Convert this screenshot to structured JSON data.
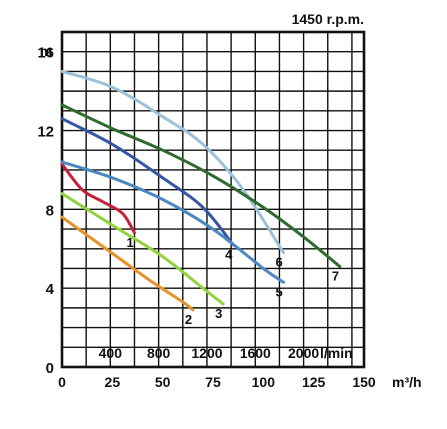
{
  "chart_data": {
    "type": "line",
    "title": "1450 r.p.m.",
    "ylabel": "m",
    "x_units_lpm": "l/min",
    "x_units_m3h": "m³/h",
    "ylim": [
      0,
      17
    ],
    "xlim_m3h": [
      0,
      150
    ],
    "y_ticks": [
      "0",
      "4",
      "8",
      "12",
      "16"
    ],
    "x_ticks_lpm": [
      "400",
      "800",
      "1200",
      "1600",
      "2000"
    ],
    "x_ticks_m3h": [
      "0",
      "25",
      "50",
      "75",
      "100",
      "125",
      "150"
    ],
    "grid": true,
    "series": [
      {
        "name": "1",
        "color": "#c8203a",
        "x": [
          0,
          10,
          20,
          30,
          36
        ],
        "y": [
          10.3,
          9.0,
          8.4,
          7.8,
          6.8
        ]
      },
      {
        "name": "2",
        "color": "#e8922a",
        "x": [
          0,
          15,
          30,
          45,
          60,
          65
        ],
        "y": [
          7.6,
          6.5,
          5.4,
          4.3,
          3.3,
          2.9
        ]
      },
      {
        "name": "3",
        "color": "#8fd43c",
        "x": [
          0,
          25,
          50,
          70,
          80
        ],
        "y": [
          8.8,
          7.2,
          5.6,
          4.0,
          3.2
        ]
      },
      {
        "name": "4",
        "color": "#3355a5",
        "x": [
          0,
          25,
          50,
          70,
          85
        ],
        "y": [
          12.6,
          11.3,
          9.6,
          8.1,
          6.2
        ]
      },
      {
        "name": "5",
        "color": "#4a88c0",
        "x": [
          0,
          25,
          50,
          75,
          100,
          110
        ],
        "y": [
          10.4,
          9.6,
          8.5,
          7.0,
          5.0,
          4.3
        ]
      },
      {
        "name": "6",
        "color": "#9cc2da",
        "x": [
          0,
          25,
          50,
          70,
          90,
          110
        ],
        "y": [
          15.0,
          14.2,
          12.7,
          11.3,
          9.0,
          5.8
        ]
      },
      {
        "name": "7",
        "color": "#2e6b2e",
        "x": [
          0,
          25,
          50,
          75,
          100,
          120,
          138
        ],
        "y": [
          13.3,
          12.1,
          11.0,
          9.7,
          8.1,
          6.6,
          5.1
        ]
      }
    ]
  }
}
